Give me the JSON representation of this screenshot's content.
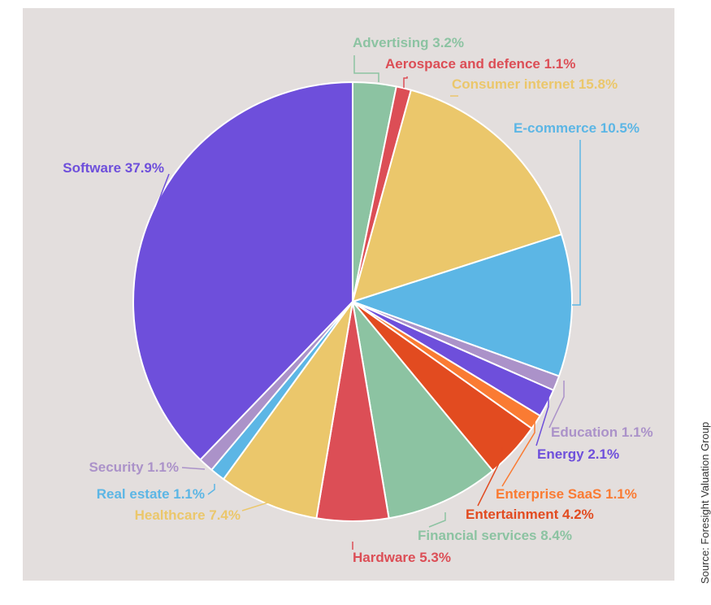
{
  "source_note": "Source: Foresight Valuation Group",
  "colors": {
    "panel_background": "#e3dedd",
    "slice_border": "#ffffff"
  },
  "chart_data": {
    "type": "pie",
    "title": "",
    "start": "12 o'clock",
    "direction": "clockwise",
    "slices": [
      {
        "label": "Advertising 3.2%",
        "name": "Advertising",
        "value": 3.2,
        "color": "#8cc3a2"
      },
      {
        "label": "Aerospace and defence 1.1%",
        "name": "Aerospace and defence",
        "value": 1.1,
        "color": "#dc4e56"
      },
      {
        "label": "Consumer internet 15.8%",
        "name": "Consumer internet",
        "value": 15.8,
        "color": "#ebc76b"
      },
      {
        "label": "E-commerce 10.5%",
        "name": "E-commerce",
        "value": 10.5,
        "color": "#5cb6e5"
      },
      {
        "label": "Education 1.1%",
        "name": "Education",
        "value": 1.1,
        "color": "#ab92c9"
      },
      {
        "label": "Energy 2.1%",
        "name": "Energy",
        "value": 2.1,
        "color": "#6e4fdb"
      },
      {
        "label": "Enterprise SaaS 1.1%",
        "name": "Enterprise SaaS",
        "value": 1.1,
        "color": "#fa7b33"
      },
      {
        "label": "Entertainment 4.2%",
        "name": "Entertainment",
        "value": 4.2,
        "color": "#e24b20"
      },
      {
        "label": "Financial services 8.4%",
        "name": "Financial services",
        "value": 8.4,
        "color": "#8cc3a2"
      },
      {
        "label": "Hardware 5.3%",
        "name": "Hardware",
        "value": 5.3,
        "color": "#dc4e56"
      },
      {
        "label": "Healthcare 7.4%",
        "name": "Healthcare",
        "value": 7.4,
        "color": "#ebc76b"
      },
      {
        "label": "Real estate 1.1%",
        "name": "Real estate",
        "value": 1.1,
        "color": "#5cb6e5"
      },
      {
        "label": "Security 1.1%",
        "name": "Security",
        "value": 1.1,
        "color": "#ab92c9"
      },
      {
        "label": "Software 37.9%",
        "name": "Software",
        "value": 37.9,
        "color": "#6e4fdb"
      }
    ]
  }
}
